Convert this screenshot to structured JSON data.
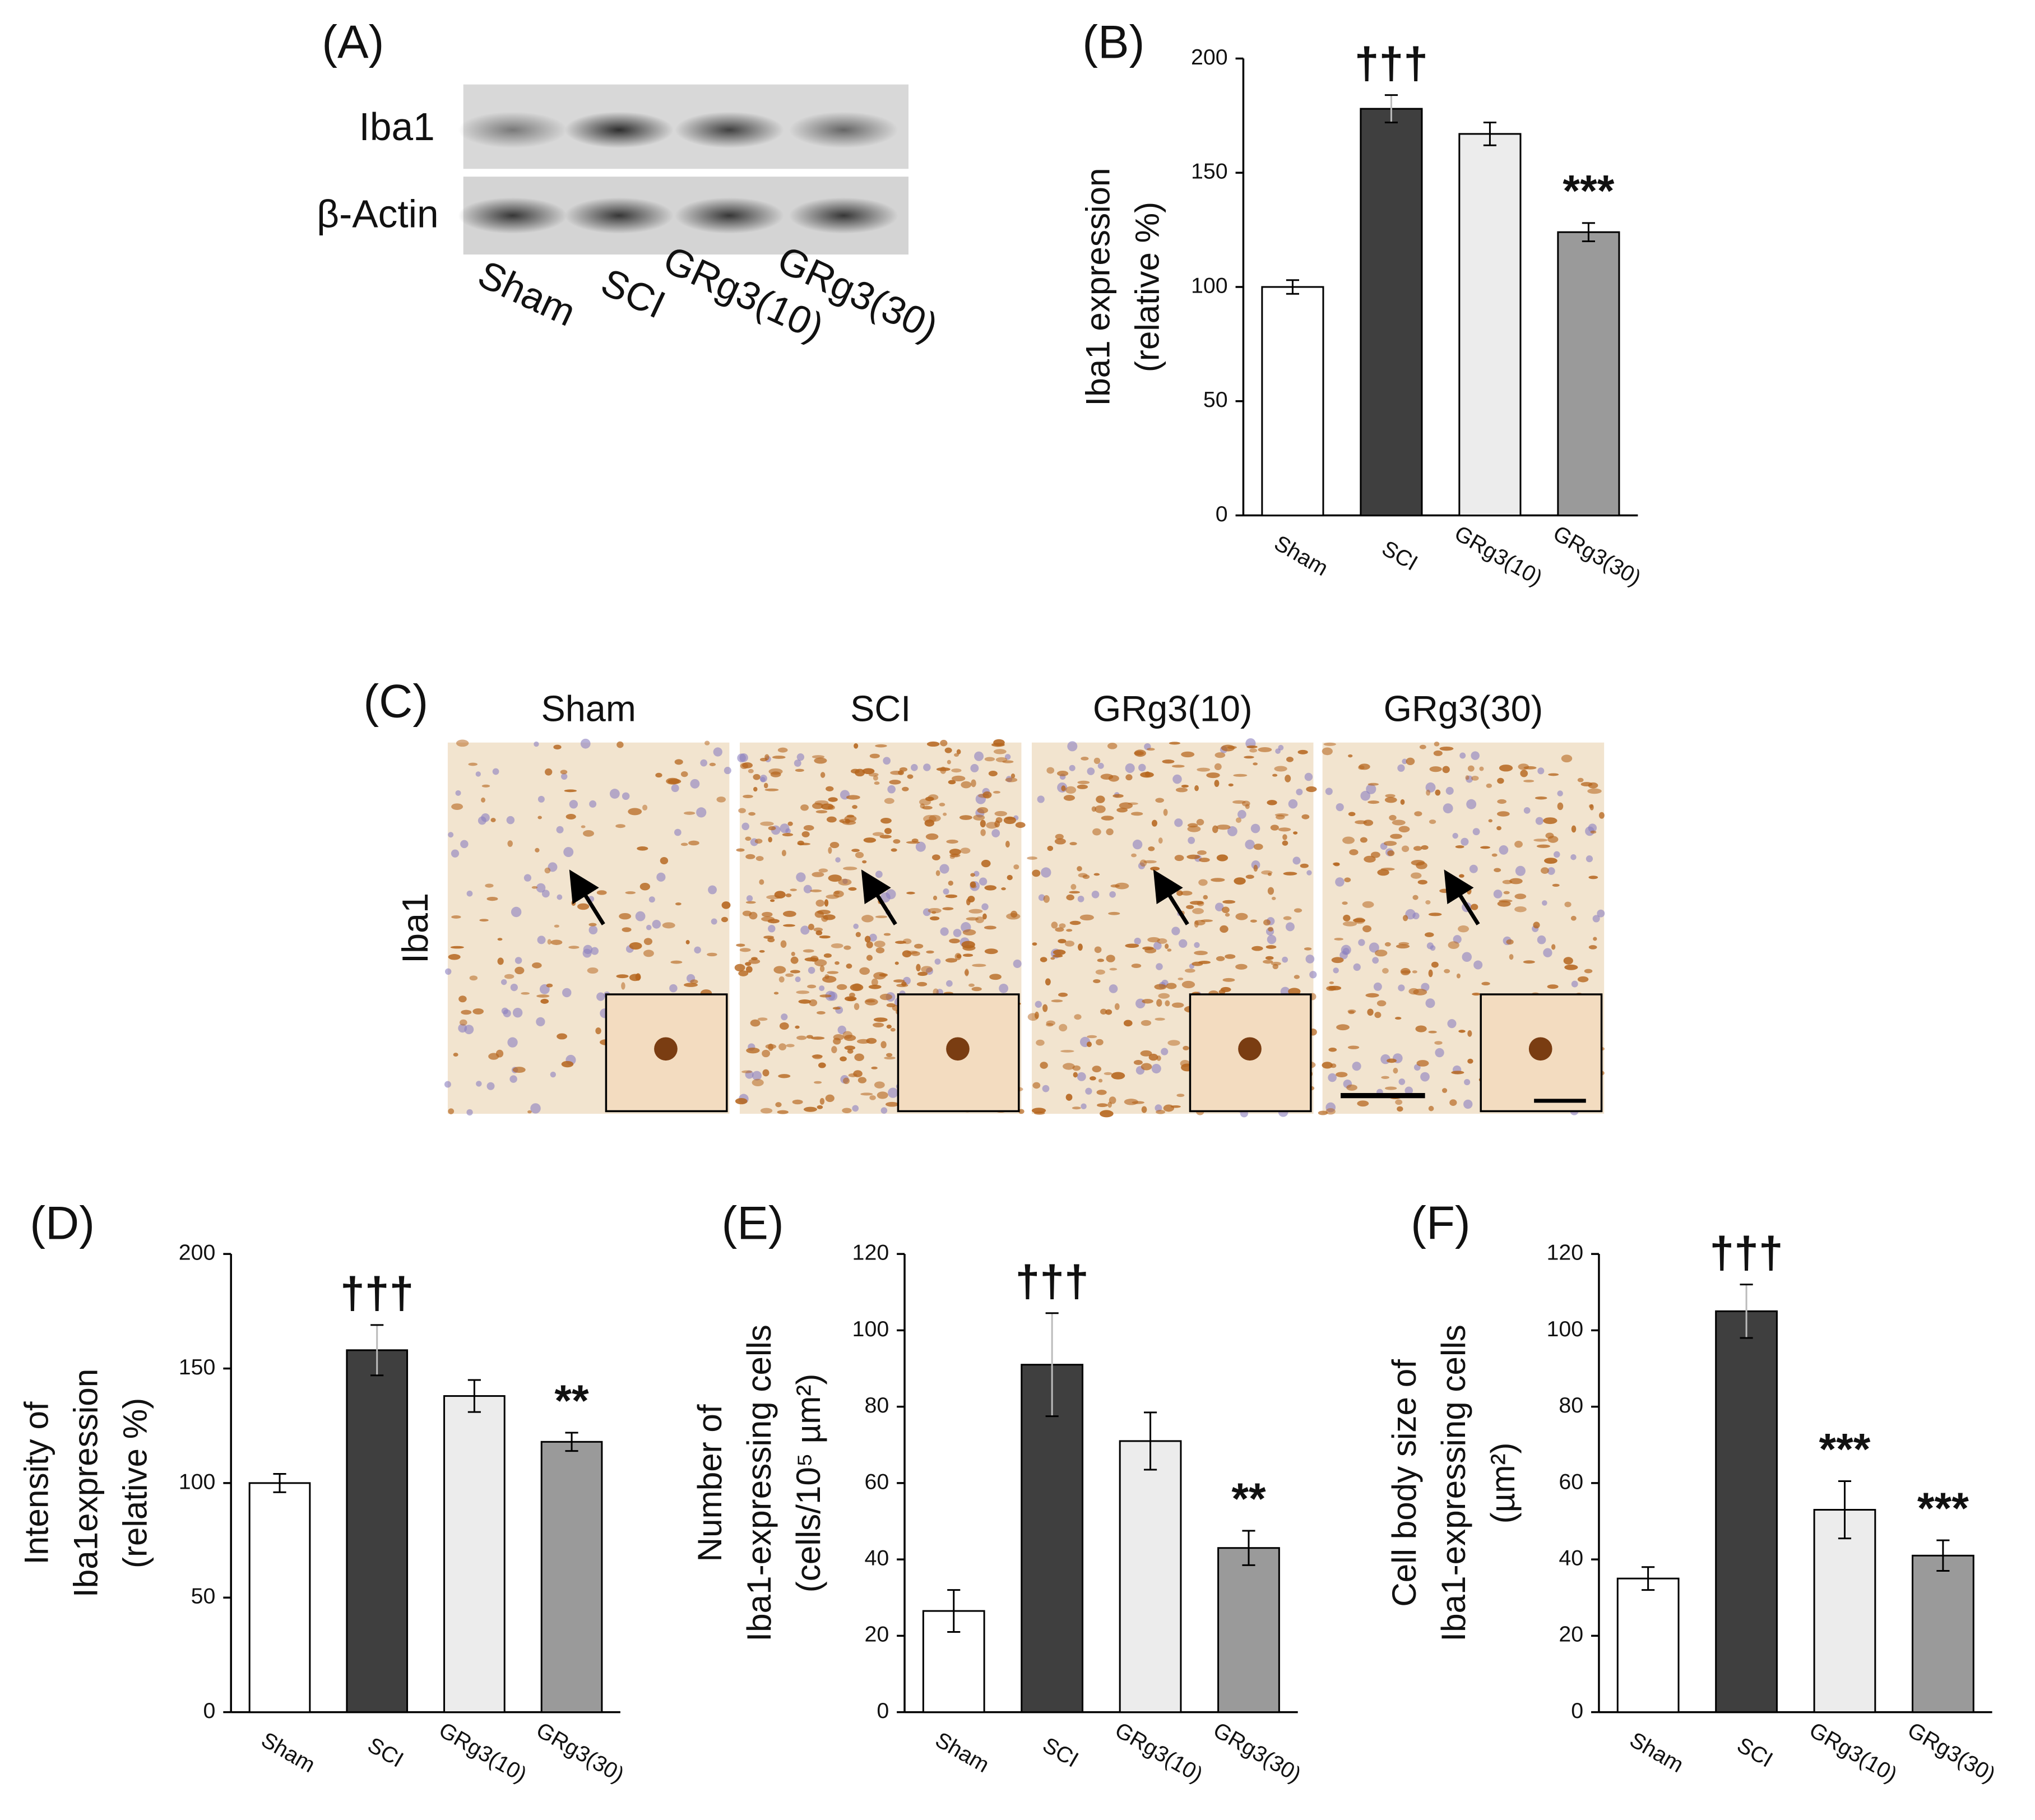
{
  "blot": {
    "label": "(A)",
    "rows": [
      "Iba1",
      "β-Actin"
    ],
    "lanes": [
      "Sham",
      "SCI",
      "GRg3(10)",
      "GRg3(30)"
    ]
  },
  "micrographs": {
    "label": "(C)",
    "stain": "Iba1",
    "groups": [
      "Sham",
      "SCI",
      "GRg3(10)",
      "GRg3(30)"
    ]
  },
  "chart_data": [
    {
      "type": "bar",
      "label": "(B)",
      "ylabel": [
        "Iba1 expression",
        "(relative %)"
      ],
      "categories": [
        "Sham",
        "SCI",
        "GRg3(10)",
        "GRg3(30)"
      ],
      "values": [
        100,
        178,
        167,
        124
      ],
      "errors": [
        3,
        6,
        5,
        4
      ],
      "value_annotations": [
        null,
        "†††",
        null,
        "***"
      ],
      "colors": [
        "#ffffff",
        "#3f3f3f",
        "#ececec",
        "#9a9a9a"
      ],
      "ylim": [
        0,
        200
      ],
      "yticks": [
        0,
        50,
        100,
        150,
        200
      ]
    },
    {
      "type": "bar",
      "label": "(D)",
      "ylabel": [
        "Intensity of",
        "Iba1expression",
        "(relative %)"
      ],
      "categories": [
        "Sham",
        "SCI",
        "GRg3(10)",
        "GRg3(30)"
      ],
      "values": [
        100,
        158,
        138,
        118
      ],
      "errors": [
        4,
        11,
        7,
        4
      ],
      "value_annotations": [
        null,
        "†††",
        null,
        "**"
      ],
      "colors": [
        "#ffffff",
        "#3f3f3f",
        "#ececec",
        "#9a9a9a"
      ],
      "ylim": [
        0,
        200
      ],
      "yticks": [
        0,
        50,
        100,
        150,
        200
      ]
    },
    {
      "type": "bar",
      "label": "(E)",
      "ylabel": [
        "Number of",
        "Iba1-expressing cells",
        "(cells/10⁵ µm²)"
      ],
      "categories": [
        "Sham",
        "SCI",
        "GRg3(10)",
        "GRg3(30)"
      ],
      "values": [
        26.5,
        91,
        71,
        43
      ],
      "errors": [
        5.5,
        13.5,
        7.5,
        4.5
      ],
      "value_annotations": [
        null,
        "†††",
        null,
        "**"
      ],
      "colors": [
        "#ffffff",
        "#3f3f3f",
        "#ececec",
        "#9a9a9a"
      ],
      "ylim": [
        0,
        120
      ],
      "yticks": [
        0,
        20,
        40,
        60,
        80,
        100,
        120
      ]
    },
    {
      "type": "bar",
      "label": "(F)",
      "ylabel": [
        "Cell body size of",
        "Iba1-expressing cells",
        "(µm²)"
      ],
      "categories": [
        "Sham",
        "SCI",
        "GRg3(10)",
        "GRg3(30)"
      ],
      "values": [
        35,
        105,
        53,
        41
      ],
      "errors": [
        3,
        7,
        7.5,
        4
      ],
      "value_annotations": [
        null,
        "†††",
        "***",
        "***"
      ],
      "colors": [
        "#ffffff",
        "#3f3f3f",
        "#ececec",
        "#9a9a9a"
      ],
      "ylim": [
        0,
        120
      ],
      "yticks": [
        0,
        20,
        40,
        60,
        80,
        100,
        120
      ]
    }
  ]
}
